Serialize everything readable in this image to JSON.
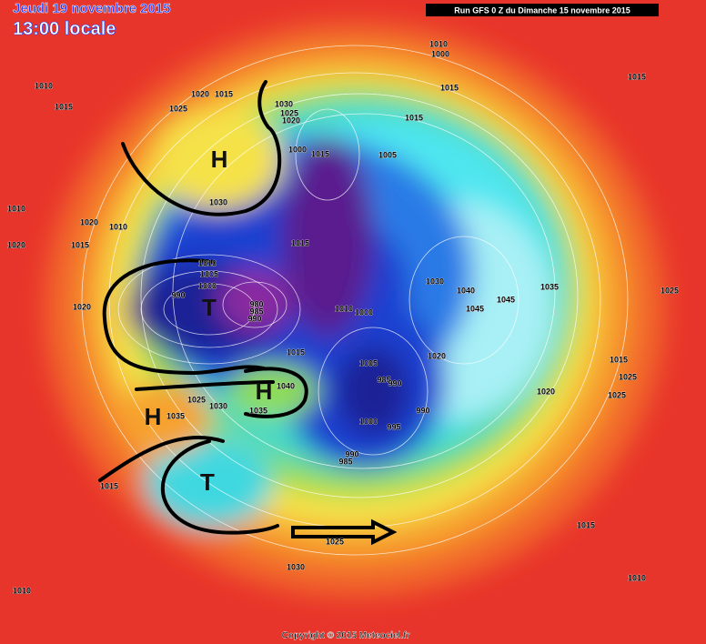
{
  "header": {
    "date": "Jeudi 19 novembre 2015",
    "time": "13:00 locale",
    "run": "Run GFS 0 Z du Dimanche 15 novembre 2015"
  },
  "labels": [
    "1010",
    "1015",
    "1025",
    "1020",
    "1015",
    "1030",
    "1025",
    "1020",
    "1010",
    "1000",
    "1015",
    "1015",
    "1015",
    "1000",
    "1015",
    "1005",
    "1030",
    "1010",
    "1020",
    "1010",
    "1015",
    "1020",
    "1015",
    "1010",
    "1005",
    "1000",
    "990",
    "980",
    "985",
    "990",
    "1010",
    "1000",
    "1030",
    "1040",
    "1045",
    "1045",
    "1035",
    "1025",
    "1020",
    "1015",
    "1020",
    "1005",
    "985",
    "990",
    "1040",
    "1025",
    "1030",
    "1035",
    "1035",
    "1015",
    "1025",
    "1025",
    "1020",
    "990",
    "1000",
    "995",
    "990",
    "985",
    "1015",
    "1015",
    "1025",
    "1030",
    "1010",
    "1010"
  ],
  "centers": [
    "H",
    "T",
    "H",
    "H",
    "T"
  ],
  "footer": "Copyright © 2015 Meteociel.fr"
}
